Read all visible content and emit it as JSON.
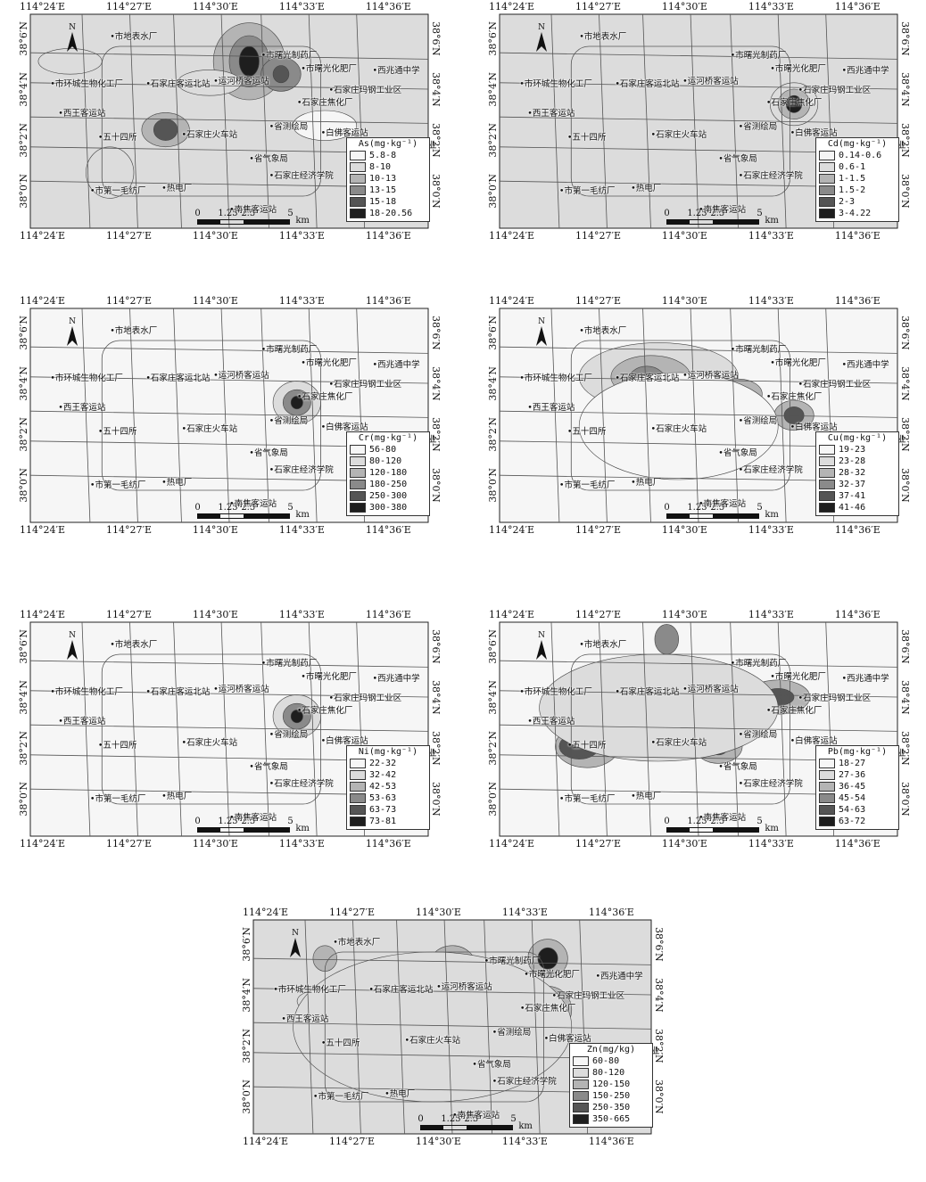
{
  "lon_labels": [
    "114°24′E",
    "114°27′E",
    "114°30′E",
    "114°33′E",
    "114°36′E"
  ],
  "lat_labels": [
    "38°6′N",
    "38°4′N",
    "38°2′N",
    "38°0′N"
  ],
  "north": "N",
  "scale": {
    "ticks": [
      "0",
      "1.25",
      "2.5",
      "5"
    ],
    "unit": "km"
  },
  "places": [
    "市地表水厂",
    "市曙光制药厂",
    "市曙光化肥厂",
    "西兆通中学",
    "市环城生物化工厂",
    "石家庄客运北站",
    "运河桥客运站",
    "石家庄焦化厂",
    "石家庄玛钢工业区",
    "西王客运站",
    "省测绘局",
    "五十四所",
    "石家庄火车站",
    "白佛客运站",
    "石家庄维生药业",
    "省气象局",
    "市第一毛纺厂",
    "热电厂",
    "石家庄经济学院",
    "南焦客运站"
  ],
  "panels": [
    {
      "element": "As",
      "unit_label": "As(mg·kg⁻¹)",
      "classes": [
        "5.8-8",
        "8-10",
        "10-13",
        "13-15",
        "15-18",
        "18-20.56"
      ]
    },
    {
      "element": "Cd",
      "unit_label": "Cd(mg·kg⁻¹)",
      "classes": [
        "0.14-0.6",
        "0.6-1",
        "1-1.5",
        "1.5-2",
        "2-3",
        "3-4.22"
      ]
    },
    {
      "element": "Cr",
      "unit_label": "Cr(mg·kg⁻¹)",
      "classes": [
        "56-80",
        "80-120",
        "120-180",
        "180-250",
        "250-300",
        "300-380"
      ]
    },
    {
      "element": "Cu",
      "unit_label": "Cu(mg·kg⁻¹)",
      "classes": [
        "19-23",
        "23-28",
        "28-32",
        "32-37",
        "37-41",
        "41-46"
      ]
    },
    {
      "element": "Ni",
      "unit_label": "Ni(mg·kg⁻¹)",
      "classes": [
        "22-32",
        "32-42",
        "42-53",
        "53-63",
        "63-73",
        "73-81"
      ]
    },
    {
      "element": "Pb",
      "unit_label": "Pb(mg·kg⁻¹)",
      "classes": [
        "18-27",
        "27-36",
        "36-45",
        "45-54",
        "54-63",
        "63-72"
      ]
    },
    {
      "element": "Zn",
      "unit_label": "Zn(mg/kg)",
      "classes": [
        "60-80",
        "80-120",
        "120-150",
        "150-250",
        "250-350",
        "350-665"
      ]
    }
  ],
  "class_colors": [
    "#f6f6f6",
    "#dcdcdc",
    "#b4b4b4",
    "#8a8a8a",
    "#555555",
    "#1e1e1e"
  ]
}
